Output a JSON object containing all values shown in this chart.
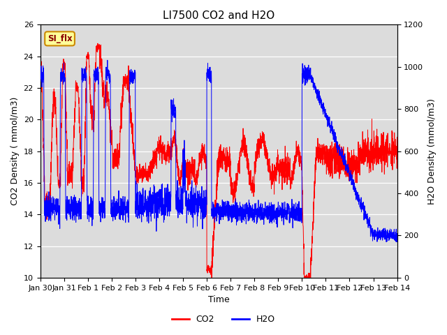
{
  "title": "LI7500 CO2 and H2O",
  "xlabel": "Time",
  "ylabel_left": "CO2 Density ( mmol/m3)",
  "ylabel_right": "H2O Density (mmol/m3)",
  "ylim_left": [
    10,
    26
  ],
  "ylim_right": [
    0,
    1200
  ],
  "co2_color": "#FF0000",
  "h2o_color": "#0000FF",
  "bg_color": "#DCDCDC",
  "annotation_text": "SI_flx",
  "annotation_bg": "#FFFF99",
  "annotation_border": "#CC8800",
  "x_tick_labels": [
    "Jan 30",
    "Jan 31",
    "Feb 1",
    "Feb 2",
    "Feb 3",
    "Feb 4",
    "Feb 5",
    "Feb 6",
    "Feb 7",
    "Feb 8",
    "Feb 9",
    "Feb 10",
    "Feb 11",
    "Feb 12",
    "Feb 13",
    "Feb 14"
  ],
  "title_fontsize": 11,
  "label_fontsize": 9,
  "tick_fontsize": 8,
  "legend_fontsize": 9
}
